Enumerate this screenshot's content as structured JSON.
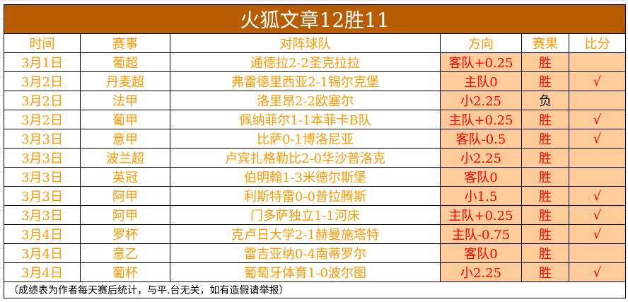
{
  "title": "火狐文章12胜11",
  "headers": [
    "时间",
    "赛事",
    "对阵球队",
    "方向",
    "赛果",
    "比分"
  ],
  "colors": {
    "title_bg": "#b85c00",
    "text": "#ff9900",
    "highlight_bg": "#ffcc99",
    "red": "#ff0000"
  },
  "rows": [
    {
      "date": "3月1日",
      "league": "葡超",
      "match": "通德拉2-2圣克拉拉",
      "direction": "客队+0.25",
      "result": "胜",
      "score": ""
    },
    {
      "date": "3月2日",
      "league": "丹麦超",
      "match": "弗雷德里西亚2-1锡尔克堡",
      "direction": "主队0",
      "result": "胜",
      "score": "√"
    },
    {
      "date": "3月2日",
      "league": "法甲",
      "match": "洛里昂2-2欧塞尔",
      "direction": "小2.25",
      "result": "负",
      "score": ""
    },
    {
      "date": "3月2日",
      "league": "葡甲",
      "match": "佩纳菲尔1-1本菲卡B队",
      "direction": "主队+0.25",
      "result": "胜",
      "score": "√"
    },
    {
      "date": "3月3日",
      "league": "意甲",
      "match": "比萨0-1博洛尼亚",
      "direction": "客队-0.5",
      "result": "胜",
      "score": "√"
    },
    {
      "date": "3月3日",
      "league": "波兰超",
      "match": "卢宾扎格勒比2-0华沙普洛克",
      "direction": "小2.25",
      "result": "胜",
      "score": ""
    },
    {
      "date": "3月3日",
      "league": "英冠",
      "match": "伯明翰1-3米德尔斯堡",
      "direction": "客队0",
      "result": "胜",
      "score": ""
    },
    {
      "date": "3月3日",
      "league": "阿甲",
      "match": "利斯特雷0-0普拉腾斯",
      "direction": "小1.5",
      "result": "胜",
      "score": "√"
    },
    {
      "date": "3月3日",
      "league": "阿甲",
      "match": "门多萨独立1-1河床",
      "direction": "主队+0.25",
      "result": "胜",
      "score": "√"
    },
    {
      "date": "3月4日",
      "league": "罗杯",
      "match": "克卢日大学2-1赫曼施塔特",
      "direction": "主队-0.75",
      "result": "胜",
      "score": "√"
    },
    {
      "date": "3月4日",
      "league": "意乙",
      "match": "雷吉亚纳0-4南蒂罗尔",
      "direction": "客队0",
      "result": "胜",
      "score": ""
    },
    {
      "date": "3月4日",
      "league": "葡杯",
      "match": "葡萄牙体育1-0波尔图",
      "direction": "小2.25",
      "result": "胜",
      "score": "√"
    }
  ],
  "footer": "（成绩表为作者每天赛后统计，与平.台无关，如有造假请举报）"
}
